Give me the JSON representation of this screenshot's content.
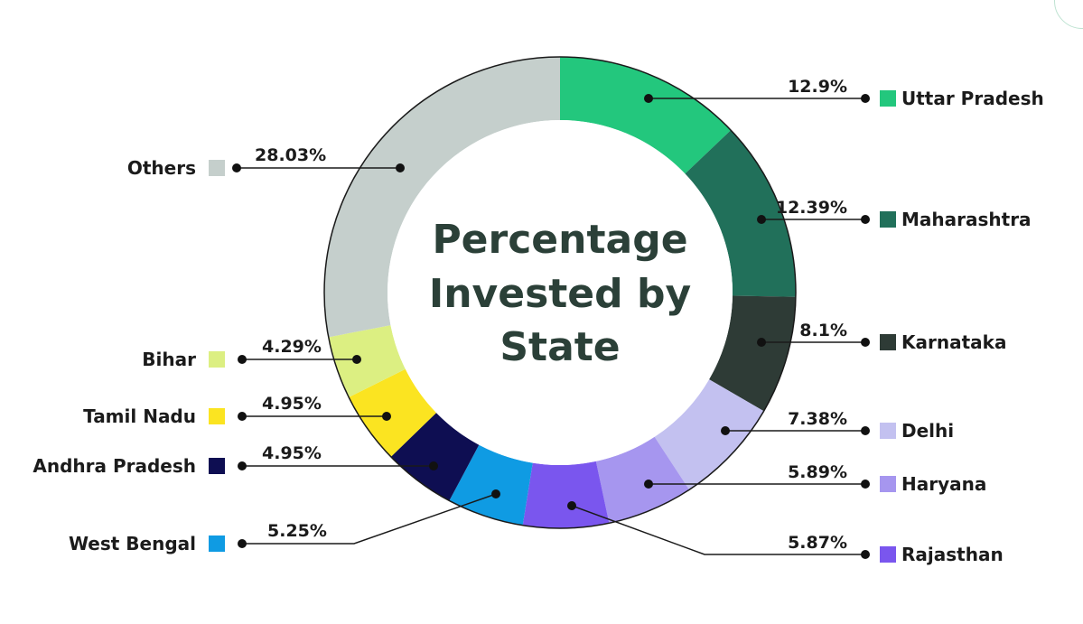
{
  "chart_data": {
    "type": "pie",
    "variant": "donut",
    "title_lines": [
      "Percentage",
      "Invested by",
      "State"
    ],
    "legend": "inline-callouts",
    "slices": [
      {
        "label": "Uttar Pradesh",
        "value": 12.9,
        "value_label": "12.9%",
        "color": "#23c77d"
      },
      {
        "label": "Maharashtra",
        "value": 12.39,
        "value_label": "12.39%",
        "color": "#21705a"
      },
      {
        "label": "Karnataka",
        "value": 8.1,
        "value_label": "8.1%",
        "color": "#2e3b36"
      },
      {
        "label": "Delhi",
        "value": 7.38,
        "value_label": "7.38%",
        "color": "#c3c1f0"
      },
      {
        "label": "Haryana",
        "value": 5.89,
        "value_label": "5.89%",
        "color": "#a696ef"
      },
      {
        "label": "Rajasthan",
        "value": 5.87,
        "value_label": "5.87%",
        "color": "#7a56ee"
      },
      {
        "label": "West Bengal",
        "value": 5.25,
        "value_label": "5.25%",
        "color": "#0f9be3"
      },
      {
        "label": "Andhra Pradesh",
        "value": 4.95,
        "value_label": "4.95%",
        "color": "#0e0e52"
      },
      {
        "label": "Tamil Nadu",
        "value": 4.95,
        "value_label": "4.95%",
        "color": "#fbe421"
      },
      {
        "label": "Bihar",
        "value": 4.29,
        "value_label": "4.29%",
        "color": "#dcef82"
      },
      {
        "label": "Others",
        "value": 28.03,
        "value_label": "28.03%",
        "color": "#c5cfcc"
      }
    ]
  }
}
